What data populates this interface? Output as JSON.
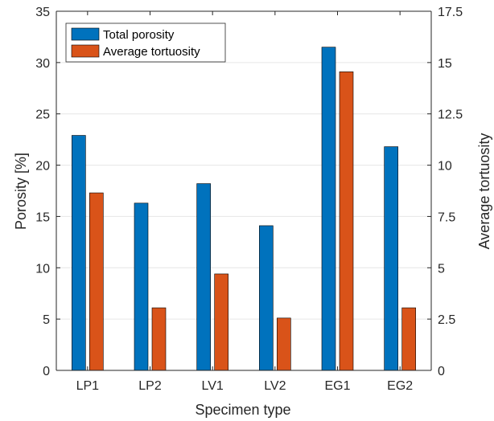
{
  "chart_data": {
    "type": "bar",
    "categories": [
      "LP1",
      "LP2",
      "LV1",
      "LV2",
      "EG1",
      "EG2"
    ],
    "series": [
      {
        "name": "Total porosity",
        "axis": "left",
        "color": "#0072BD",
        "values": [
          22.9,
          16.3,
          18.2,
          14.1,
          31.5,
          21.8
        ]
      },
      {
        "name": "Average tortuosity",
        "axis": "right",
        "color": "#D95319",
        "values": [
          8.65,
          3.05,
          4.7,
          2.55,
          14.55,
          3.05
        ]
      }
    ],
    "xlabel": "Specimen type",
    "ylabel": "Porosity [%]",
    "ylabel_right": "Average tortuosity",
    "ylim": [
      0,
      35
    ],
    "ylim_right": [
      0,
      17.5
    ],
    "yticks": [
      "0",
      "5",
      "10",
      "15",
      "20",
      "25",
      "30",
      "35"
    ],
    "yticks_right": [
      "0",
      "2.5",
      "5",
      "7.5",
      "10",
      "12.5",
      "15",
      "17.5"
    ],
    "grid": true,
    "legend_position": "top-left"
  }
}
